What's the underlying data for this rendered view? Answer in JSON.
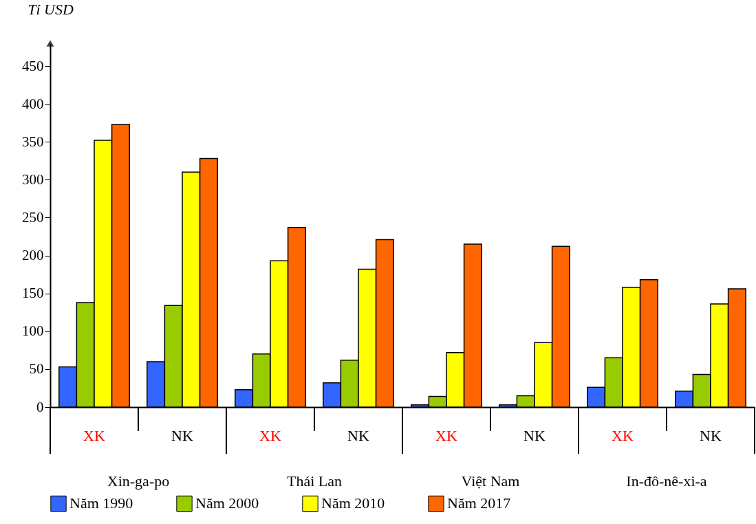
{
  "chart_data": {
    "type": "bar",
    "ylabel": "Tỉ USD",
    "categories": [
      "XK",
      "NK",
      "XK",
      "NK",
      "XK",
      "NK",
      "XK",
      "NK"
    ],
    "annotations": [
      "Xin-ga-po",
      "Thái Lan",
      "Việt Nam",
      "In-đô-nê-xi-a"
    ],
    "series": [
      {
        "name": "Năm 1990",
        "color": "#3366ff",
        "values": [
          53,
          60,
          23,
          32,
          3,
          3,
          26,
          21
        ]
      },
      {
        "name": "Năm 2000",
        "color": "#99cc00",
        "values": [
          138,
          134,
          70,
          62,
          14,
          15,
          65,
          43
        ]
      },
      {
        "name": "Năm 2010",
        "color": "#ffff00",
        "values": [
          352,
          310,
          193,
          182,
          72,
          85,
          158,
          136
        ]
      },
      {
        "name": "Năm 2017",
        "color": "#ff6600",
        "values": [
          373,
          328,
          237,
          221,
          215,
          212,
          168,
          156
        ]
      }
    ],
    "ylim": [
      0,
      480
    ],
    "yticks": [
      0,
      50,
      100,
      150,
      200,
      250,
      300,
      350,
      400,
      450
    ],
    "grid": false,
    "legend": "bottom"
  }
}
